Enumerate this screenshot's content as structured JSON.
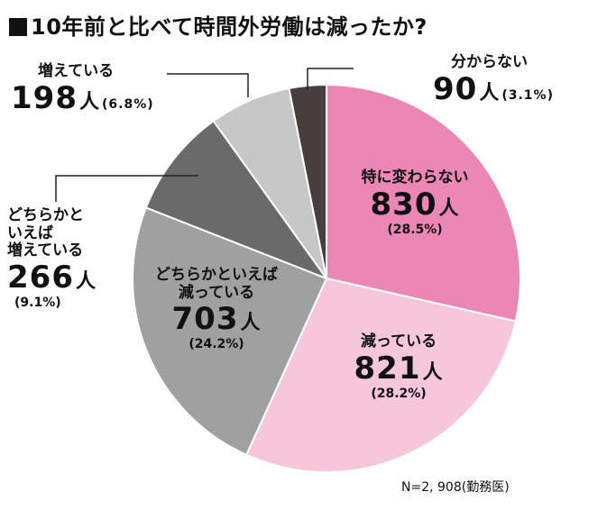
{
  "title": "10年前と比べて時間外労働は減ったか?",
  "note": "N=2, 908(勤務医)",
  "chart_data": {
    "type": "pie",
    "title": "10年前と比べて時間外労働は減ったか?",
    "unit": "人",
    "total_label": "N=2, 908(勤務医)",
    "slices": [
      {
        "label": "特に変わらない",
        "value": 830,
        "percent_label": "(28.5%)",
        "color": "#EC86B4"
      },
      {
        "label": "減っている",
        "value": 821,
        "percent_label": "(28.2%)",
        "color": "#F6C6DB"
      },
      {
        "label": "どちらかといえば 減っている",
        "value": 703,
        "percent_label": "(24.2%)",
        "color": "#A0A0A0"
      },
      {
        "label": "どちらかといえば 増えている",
        "value": 266,
        "percent_label": "(9.1%)",
        "color": "#6A6A6A"
      },
      {
        "label": "増えている",
        "value": 198,
        "percent_label": "(6.8%)",
        "color": "#C7C7C7"
      },
      {
        "label": "分からない",
        "value": 90,
        "percent_label": "(3.1%)",
        "color": "#463F3D"
      }
    ]
  },
  "labels": {
    "unchanged": {
      "line1": "特に変わらない",
      "count": "830",
      "unit": "人",
      "pct": "(28.5%)"
    },
    "decreased": {
      "line1": "減っている",
      "count": "821",
      "unit": "人",
      "pct": "(28.2%)"
    },
    "rather_decreased": {
      "line1": "どちらかといえば",
      "line2": "減っている",
      "count": "703",
      "unit": "人",
      "pct": "(24.2%)"
    },
    "rather_increased": {
      "line1": "どちらかと",
      "line2": "いえば",
      "line3": "増えている",
      "count": "266",
      "unit": "人",
      "pct": "(9.1%)"
    },
    "increased": {
      "line1": "増えている",
      "count": "198",
      "unit": "人",
      "pct": "(6.8%)"
    },
    "unknown": {
      "line1": "分からない",
      "count": "90",
      "unit": "人",
      "pct": "(3.1%)"
    }
  }
}
